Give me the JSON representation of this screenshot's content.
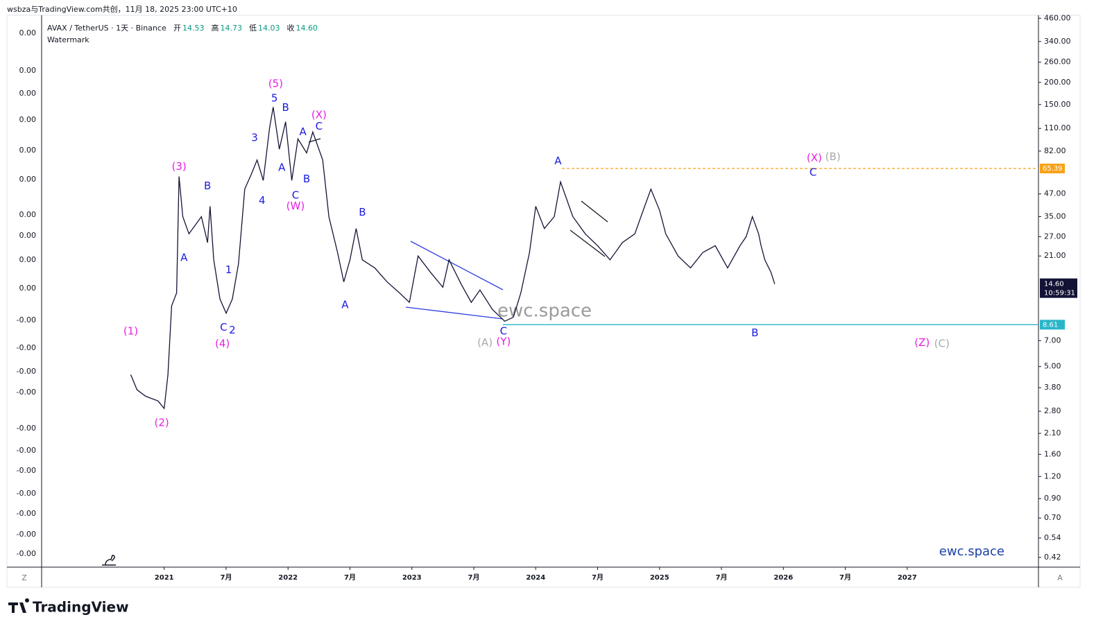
{
  "header": {
    "attribution": "wsbza与TradingView.com共创，11月 18, 2025 23:00 UTC+10"
  },
  "footer": {
    "brand": "TradingView"
  },
  "chart_data": {
    "type": "line",
    "symbol": "AVAX / TetherUS · 1天 · Binance",
    "ohlc": [
      {
        "name": "开",
        "value": "14.53"
      },
      {
        "name": "高",
        "value": "14.73"
      },
      {
        "name": "低",
        "value": "14.03"
      },
      {
        "name": "收",
        "value": "14.60"
      }
    ],
    "indicator": "Watermark",
    "watermark": "ewc.space",
    "brand_label": "ewc.space",
    "corner_left": "Z",
    "corner_right": "A",
    "color": "#131336",
    "log_scale": true,
    "x": [
      2020.73,
      2020.78,
      2020.85,
      2020.95,
      2021.0,
      2021.03,
      2021.06,
      2021.1,
      2021.12,
      2021.15,
      2021.2,
      2021.3,
      2021.35,
      2021.37,
      2021.4,
      2021.45,
      2021.5,
      2021.55,
      2021.6,
      2021.65,
      2021.7,
      2021.75,
      2021.8,
      2021.85,
      2021.88,
      2021.93,
      2021.98,
      2022.03,
      2022.08,
      2022.15,
      2022.2,
      2022.28,
      2022.33,
      2022.4,
      2022.45,
      2022.5,
      2022.55,
      2022.6,
      2022.7,
      2022.8,
      2022.9,
      2022.98,
      2023.05,
      2023.15,
      2023.25,
      2023.3,
      2023.4,
      2023.48,
      2023.55,
      2023.65,
      2023.75,
      2023.82,
      2023.88,
      2023.95,
      2024.0,
      2024.07,
      2024.15,
      2024.2,
      2024.3,
      2024.4,
      2024.5,
      2024.6,
      2024.7,
      2024.8,
      2024.88,
      2024.93,
      2025.0,
      2025.05,
      2025.15,
      2025.25,
      2025.35,
      2025.45,
      2025.55,
      2025.65,
      2025.7,
      2025.75,
      2025.8,
      2025.82,
      2025.85,
      2025.9,
      2025.93
    ],
    "values": [
      4.5,
      3.7,
      3.4,
      3.2,
      2.9,
      4.5,
      11,
      13,
      59,
      35,
      28,
      35,
      25,
      40,
      20,
      12,
      10,
      12,
      19,
      50,
      60,
      73,
      56,
      110,
      145,
      84,
      120,
      56,
      96,
      80,
      105,
      73,
      35,
      22,
      15,
      20,
      30,
      20,
      18,
      15,
      13,
      11.5,
      21,
      17,
      14,
      20,
      14.5,
      11.5,
      13.5,
      10.5,
      9,
      9.5,
      13,
      22,
      40,
      30,
      35,
      55,
      35,
      28,
      24,
      20,
      25,
      28,
      40,
      50,
      38,
      28,
      21,
      18,
      22,
      24,
      18,
      24,
      27,
      35,
      28,
      24,
      20,
      17,
      14.6
    ],
    "xlim": [
      2020.01,
      2028.06
    ],
    "ylim": [
      0.37,
      478
    ],
    "xticks": [
      {
        "value": 2021,
        "label": "2021"
      },
      {
        "value": 2021.5,
        "label": "7月"
      },
      {
        "value": 2022,
        "label": "2022"
      },
      {
        "value": 2022.5,
        "label": "7月"
      },
      {
        "value": 2023,
        "label": "2023"
      },
      {
        "value": 2023.5,
        "label": "7月"
      },
      {
        "value": 2024,
        "label": "2024"
      },
      {
        "value": 2024.5,
        "label": "7月"
      },
      {
        "value": 2025,
        "label": "2025"
      },
      {
        "value": 2025.5,
        "label": "7月"
      },
      {
        "value": 2026,
        "label": "2026"
      },
      {
        "value": 2026.5,
        "label": "7月"
      },
      {
        "value": 2027,
        "label": "2027"
      }
    ],
    "yticks": [
      {
        "value": 460,
        "label": "460.00"
      },
      {
        "value": 340,
        "label": "340.00"
      },
      {
        "value": 260,
        "label": "260.00"
      },
      {
        "value": 200,
        "label": "200.00"
      },
      {
        "value": 150,
        "label": "150.00"
      },
      {
        "value": 110,
        "label": "110.00"
      },
      {
        "value": 82,
        "label": "82.00"
      },
      {
        "value": 47,
        "label": "47.00"
      },
      {
        "value": 35,
        "label": "35.00"
      },
      {
        "value": 27,
        "label": "27.00"
      },
      {
        "value": 21,
        "label": "21.00"
      },
      {
        "value": 7,
        "label": "7.00"
      },
      {
        "value": 5,
        "label": "5.00"
      },
      {
        "value": 3.8,
        "label": "3.80"
      },
      {
        "value": 2.8,
        "label": "2.80"
      },
      {
        "value": 2.1,
        "label": "2.10"
      },
      {
        "value": 1.6,
        "label": "1.60"
      },
      {
        "value": 1.2,
        "label": "1.20"
      },
      {
        "value": 0.9,
        "label": "0.90"
      },
      {
        "value": 0.7,
        "label": "0.70"
      },
      {
        "value": 0.54,
        "label": "0.54"
      },
      {
        "value": 0.42,
        "label": "0.42"
      }
    ],
    "left_axis_labels": [
      "0.00",
      "0.00",
      "0.00",
      "0.00",
      "0.00",
      "0.00",
      "0.00",
      "0.00",
      "0.00",
      "0.00",
      "-0.00",
      "-0.00",
      "-0.00",
      "-0.00",
      "-0.00",
      "-0.00",
      "-0.00",
      "-0.00",
      "-0.00",
      "-0.00",
      "-0.00"
    ],
    "price_lines": [
      {
        "value": 65.39,
        "color": "#f7a21b"
      },
      {
        "value": 8.61,
        "color": "#29b6c9"
      }
    ],
    "last_price": {
      "value": 14.6,
      "label": "14.60",
      "countdown": "10:59:31"
    },
    "annotations": [
      {
        "text": "(1)",
        "color": "#e91ee3",
        "x": 2020.73,
        "y": 7.9
      },
      {
        "text": "(2)",
        "color": "#e91ee3",
        "x": 2020.98,
        "y": 2.4
      },
      {
        "text": "(3)",
        "color": "#e91ee3",
        "x": 2021.12,
        "y": 67
      },
      {
        "text": "A",
        "color": "#1a1ae0",
        "x": 2021.16,
        "y": 20.5
      },
      {
        "text": "B",
        "color": "#1a1ae0",
        "x": 2021.35,
        "y": 52
      },
      {
        "text": "1",
        "color": "#1a1ae0",
        "x": 2021.52,
        "y": 17.5
      },
      {
        "text": "C",
        "color": "#1a1ae0",
        "x": 2021.48,
        "y": 8.3
      },
      {
        "text": "2",
        "color": "#1a1ae0",
        "x": 2021.55,
        "y": 8.0
      },
      {
        "text": "(4)",
        "color": "#e91ee3",
        "x": 2021.47,
        "y": 6.7
      },
      {
        "text": "3",
        "color": "#1a1ae0",
        "x": 2021.73,
        "y": 97
      },
      {
        "text": "4",
        "color": "#1a1ae0",
        "x": 2021.79,
        "y": 43
      },
      {
        "text": "5",
        "color": "#1a1ae0",
        "x": 2021.89,
        "y": 162
      },
      {
        "text": "(5)",
        "color": "#e91ee3",
        "x": 2021.9,
        "y": 196
      },
      {
        "text": "B",
        "color": "#1a1ae0",
        "x": 2021.98,
        "y": 144
      },
      {
        "text": "A",
        "color": "#1a1ae0",
        "x": 2021.95,
        "y": 66
      },
      {
        "text": "C",
        "color": "#1a1ae0",
        "x": 2022.06,
        "y": 46
      },
      {
        "text": "(W)",
        "color": "#e91ee3",
        "x": 2022.06,
        "y": 40
      },
      {
        "text": "A",
        "color": "#1a1ae0",
        "x": 2022.12,
        "y": 105
      },
      {
        "text": "B",
        "color": "#1a1ae0",
        "x": 2022.15,
        "y": 57
      },
      {
        "text": "(X)",
        "color": "#e91ee3",
        "x": 2022.25,
        "y": 131
      },
      {
        "text": "C",
        "color": "#1a1ae0",
        "x": 2022.25,
        "y": 113
      },
      {
        "text": "B",
        "color": "#1a1ae0",
        "x": 2022.6,
        "y": 37
      },
      {
        "text": "A",
        "color": "#1a1ae0",
        "x": 2022.46,
        "y": 11.1
      },
      {
        "text": "C",
        "color": "#1a1ae0",
        "x": 2023.74,
        "y": 7.9
      },
      {
        "text": "(A)",
        "color": "#a8a8a8",
        "x": 2023.59,
        "y": 6.8
      },
      {
        "text": "(Y)",
        "color": "#e91ee3",
        "x": 2023.74,
        "y": 6.9
      },
      {
        "text": "A",
        "color": "#1a1ae0",
        "x": 2024.18,
        "y": 72
      },
      {
        "text": "(X)",
        "color": "#e91ee3",
        "x": 2026.25,
        "y": 75
      },
      {
        "text": "(B)",
        "color": "#a8a8a8",
        "x": 2026.4,
        "y": 76
      },
      {
        "text": "C",
        "color": "#1a1ae0",
        "x": 2026.24,
        "y": 62
      },
      {
        "text": "B",
        "color": "#1a1ae0",
        "x": 2025.77,
        "y": 7.7
      },
      {
        "text": "(Z)",
        "color": "#e91ee3",
        "x": 2027.12,
        "y": 6.8
      },
      {
        "text": "(C)",
        "color": "#a8a8a8",
        "x": 2027.28,
        "y": 6.7
      }
    ]
  }
}
